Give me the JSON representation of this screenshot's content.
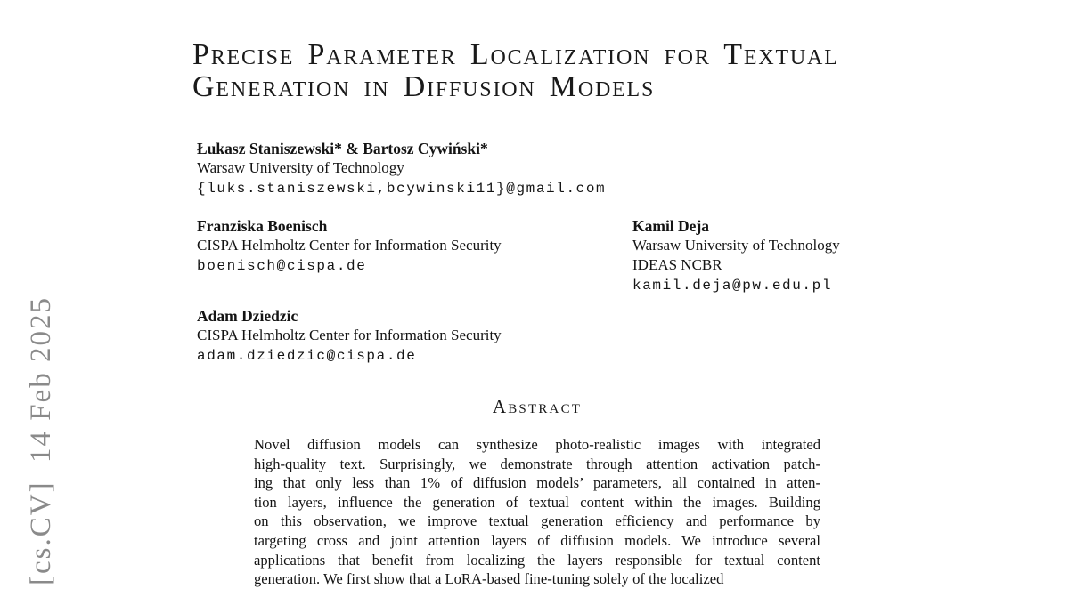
{
  "watermark": {
    "text": "[cs.CV]  14 Feb 2025",
    "color": "#8a8a8a"
  },
  "title": {
    "line1": "Precise Parameter Localization for Textual",
    "line2": "Generation in Diffusion Models"
  },
  "authors": {
    "block1": {
      "name": "Łukasz Staniszewski* & Bartosz Cywiński*",
      "affil": "Warsaw University of Technology",
      "email": "{luks.staniszewski,bcywinski11}@gmail.com"
    },
    "block2": {
      "name": "Franziska Boenisch",
      "affil": "CISPA Helmholtz Center for Information Security",
      "email": "boenisch@cispa.de"
    },
    "block3": {
      "name": "Kamil Deja",
      "affil1": "Warsaw University of Technology",
      "affil2": "IDEAS NCBR",
      "email": "kamil.deja@pw.edu.pl"
    },
    "block4": {
      "name": "Adam Dziedzic",
      "affil": "CISPA Helmholtz Center for Information Security",
      "email": "adam.dziedzic@cispa.de"
    }
  },
  "abstract": {
    "heading": "Abstract",
    "lines": [
      "Novel diffusion models can synthesize photo-realistic images with integrated",
      "high-quality text. Surprisingly, we demonstrate through attention activation patch-",
      "ing that only less than 1% of diffusion models’ parameters, all contained in atten-",
      "tion layers, influence the generation of textual content within the images. Building",
      "on this observation, we improve textual generation efficiency and performance by",
      "targeting cross and joint attention layers of diffusion models. We introduce several",
      "applications that benefit from localizing the layers responsible for textual content",
      "generation. We first show that a LoRA-based fine-tuning solely of the localized"
    ]
  }
}
